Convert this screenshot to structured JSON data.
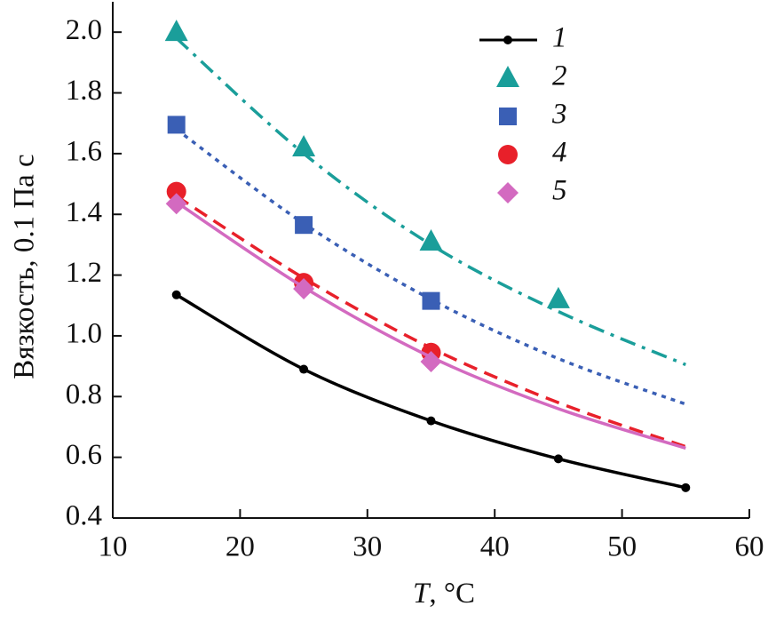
{
  "chart_data": {
    "type": "line",
    "x_label": {
      "symbol": "T",
      "unit": ", °C"
    },
    "y_label": "Вязкость, 0.1 Па с",
    "x": [
      15,
      25,
      35,
      45,
      55
    ],
    "xlim": [
      10,
      60
    ],
    "xticks": [
      10,
      20,
      30,
      40,
      50,
      60
    ],
    "ylim": [
      0.4,
      2.1
    ],
    "yticks": [
      {
        "value": 0.4,
        "label": "0.4"
      },
      {
        "value": 0.6,
        "label": "0.6"
      },
      {
        "value": 0.8,
        "label": "0.8"
      },
      {
        "value": 1.0,
        "label": "1.0"
      },
      {
        "value": 1.2,
        "label": "1.2"
      },
      {
        "value": 1.4,
        "label": "1.4"
      },
      {
        "value": 1.6,
        "label": "1.6"
      },
      {
        "value": 1.8,
        "label": "1.8"
      },
      {
        "value": 2.0,
        "label": "2.0"
      }
    ],
    "series": [
      {
        "name": "1",
        "color": "#000000",
        "marker": "dot",
        "dash": "solid",
        "values": [
          1.135,
          0.89,
          0.72,
          0.595,
          0.5
        ]
      },
      {
        "name": "2",
        "color": "#1a9e9a",
        "marker": "triangle",
        "dash": "dashdot",
        "values": [
          2.0,
          1.62,
          1.31,
          1.12,
          null
        ],
        "fit": [
          1.98,
          1.6,
          1.3,
          1.08,
          0.905
        ]
      },
      {
        "name": "3",
        "color": "#3a5fb5",
        "marker": "square",
        "dash": "dot",
        "values": [
          1.695,
          1.365,
          1.115,
          null,
          null
        ],
        "fit": [
          1.68,
          1.37,
          1.12,
          0.925,
          0.775
        ]
      },
      {
        "name": "4",
        "color": "#e8202a",
        "marker": "circle",
        "dash": "dash",
        "values": [
          1.475,
          1.175,
          0.945,
          null,
          null
        ],
        "fit": [
          1.46,
          1.19,
          0.96,
          0.78,
          0.635
        ]
      },
      {
        "name": "5",
        "color": "#d36ac0",
        "marker": "diamond",
        "dash": "solid",
        "values": [
          1.435,
          1.155,
          0.915,
          null,
          null
        ],
        "fit": [
          1.44,
          1.16,
          0.93,
          0.76,
          0.63
        ]
      }
    ]
  }
}
